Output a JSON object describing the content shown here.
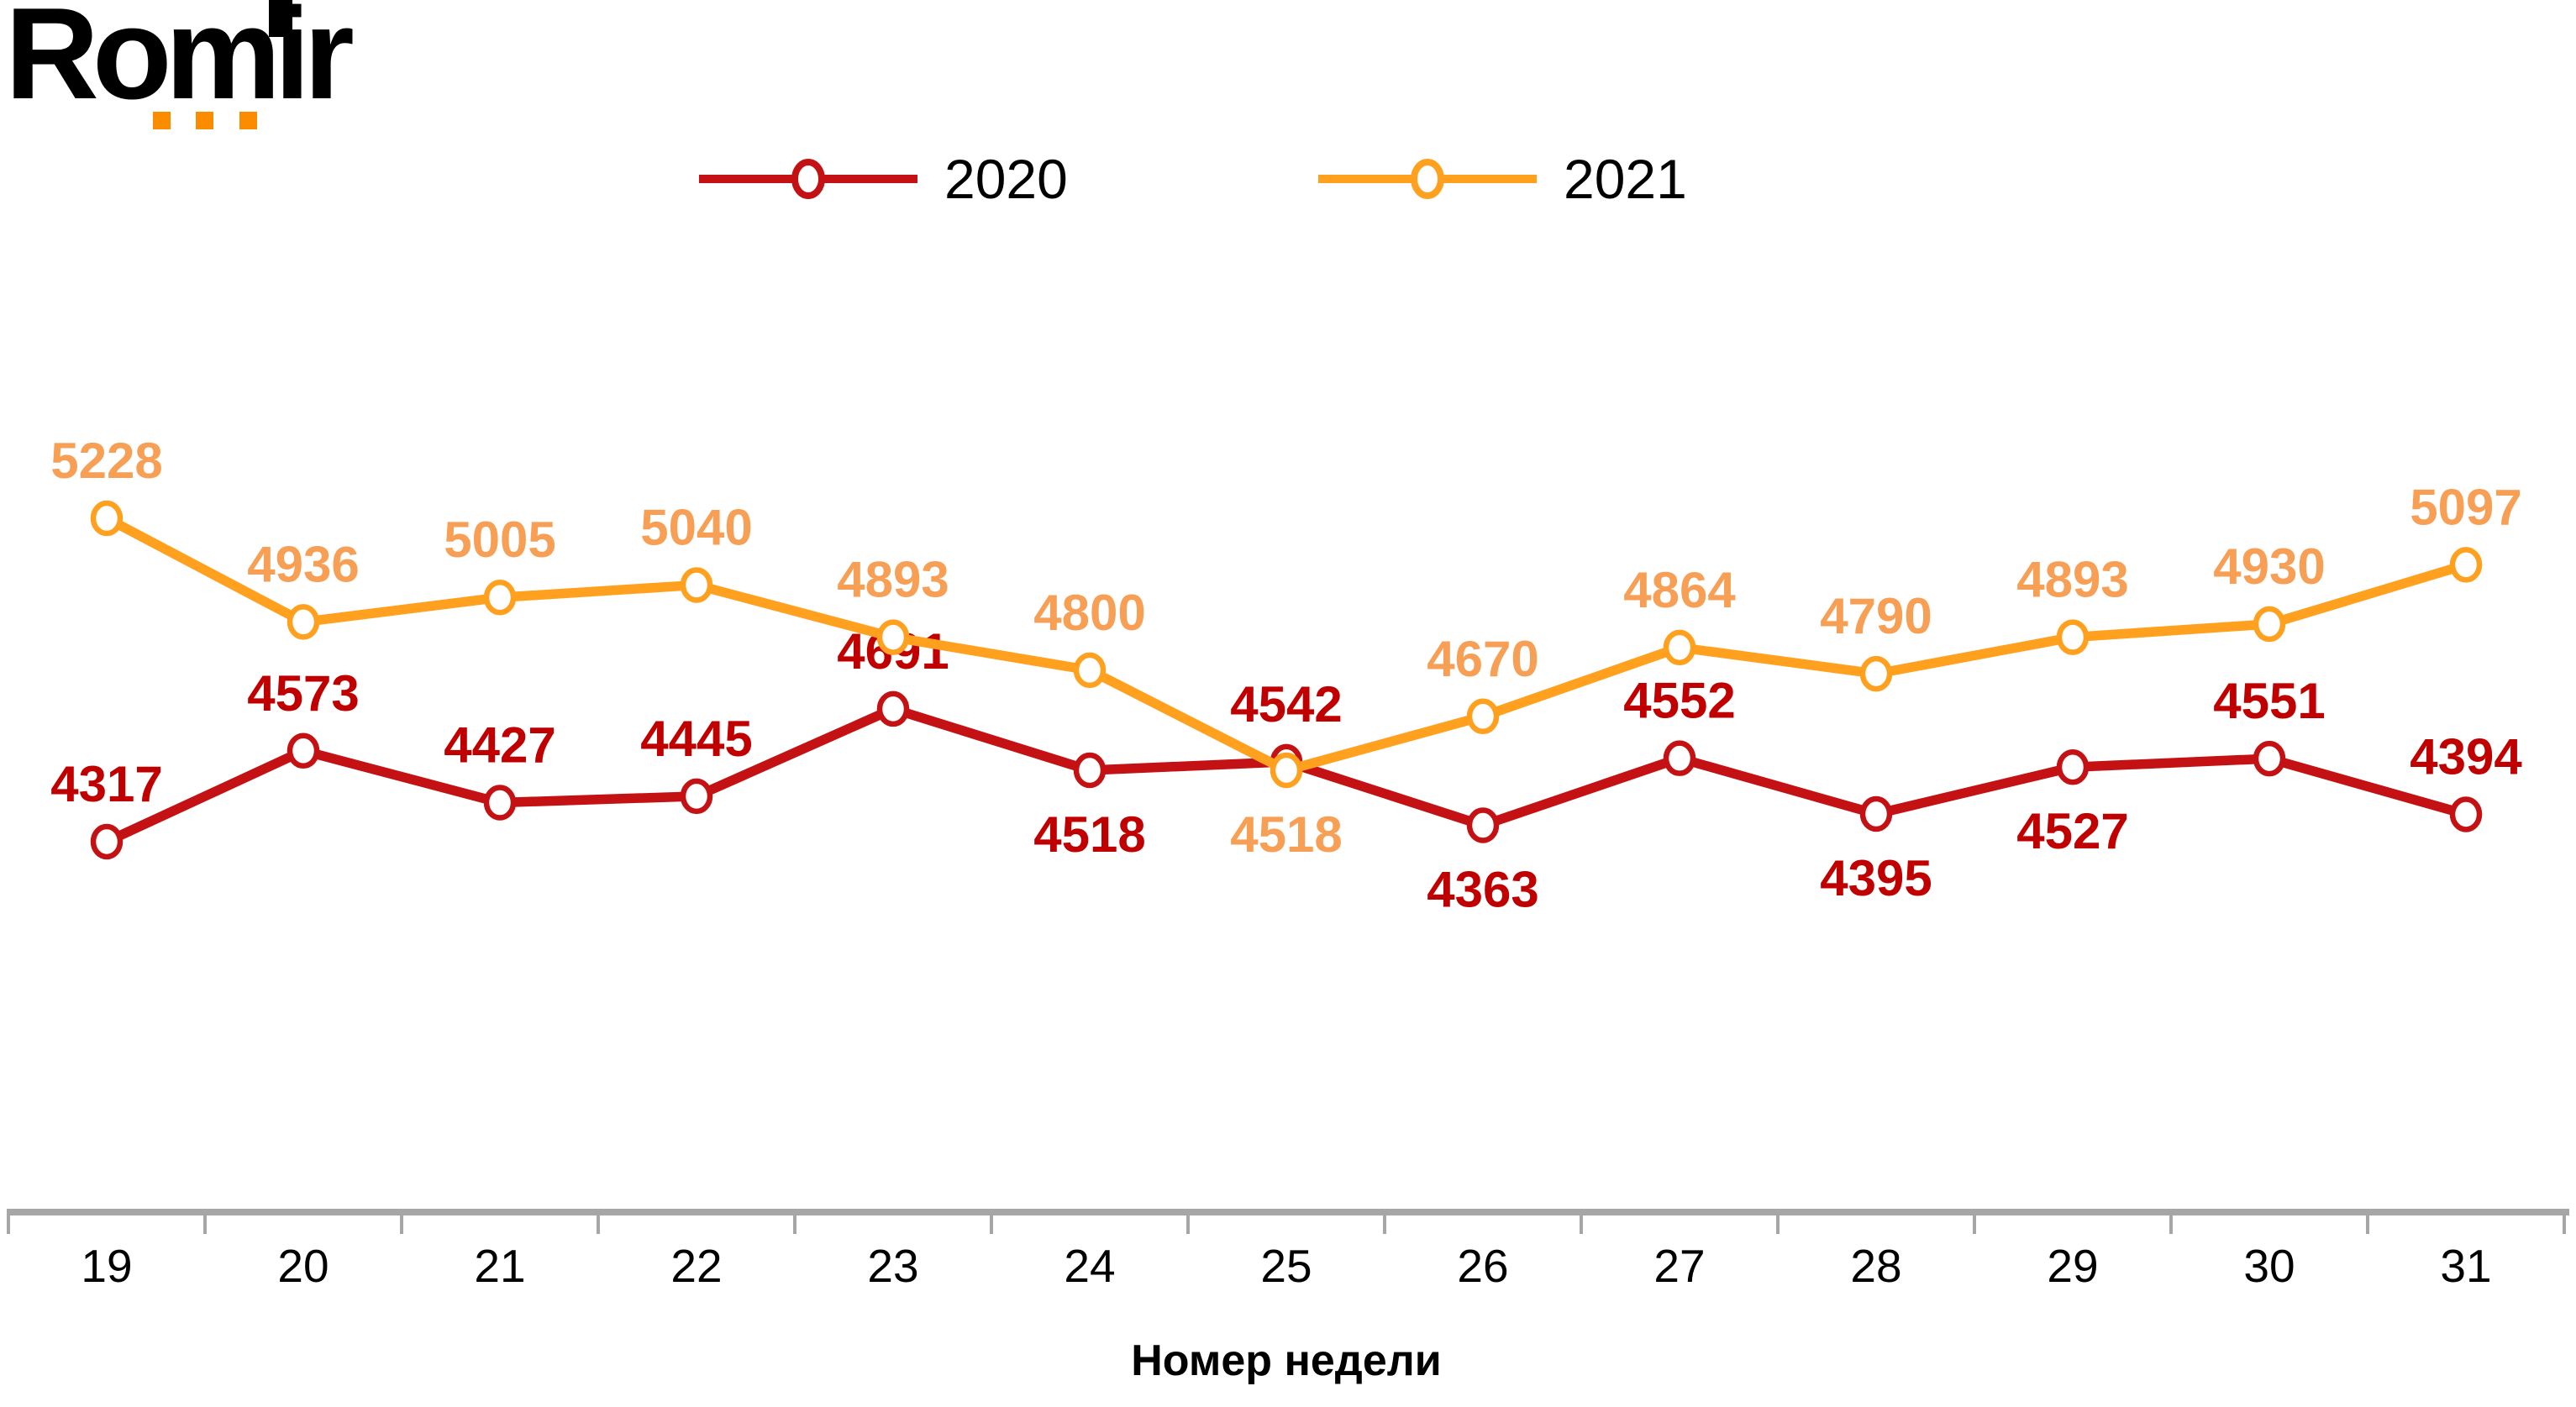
{
  "logo": {
    "text": "Romir",
    "dot_color": "#FB8C00"
  },
  "legend": {
    "items": [
      {
        "label": "2020",
        "color": "#C41214"
      },
      {
        "label": "2021",
        "color": "#FFA01E"
      }
    ]
  },
  "chart_data": {
    "type": "line",
    "title": "",
    "xlabel": "Номер недели",
    "ylabel": "",
    "categories": [
      "19",
      "20",
      "21",
      "22",
      "23",
      "24",
      "25",
      "26",
      "27",
      "28",
      "29",
      "30",
      "31"
    ],
    "series": [
      {
        "name": "2020",
        "color": "#C41214",
        "label_color": "#C00000",
        "values": [
          4317,
          4573,
          4427,
          4445,
          4691,
          4518,
          4542,
          4363,
          4552,
          4395,
          4527,
          4551,
          4394
        ],
        "label_positions": [
          "above",
          "above",
          "above",
          "above",
          "above",
          "below",
          "above",
          "below",
          "above",
          "below",
          "below",
          "above",
          "above"
        ]
      },
      {
        "name": "2021",
        "color": "#FFA01E",
        "label_color": "#F79F55",
        "values": [
          5228,
          4936,
          5005,
          5040,
          4893,
          4800,
          4518,
          4670,
          4864,
          4790,
          4893,
          4930,
          5097
        ],
        "label_positions": [
          "above",
          "above",
          "above",
          "above",
          "above",
          "above",
          "below",
          "above",
          "above",
          "above",
          "above",
          "above",
          "above"
        ]
      }
    ],
    "axis_color": "#A6A6A6",
    "tick_label_color": "#000000",
    "legend_position": "top",
    "grid": false,
    "data_labels": true,
    "y_axis_visible": false,
    "approx_value_range_shown": [
      4300,
      5230
    ]
  }
}
